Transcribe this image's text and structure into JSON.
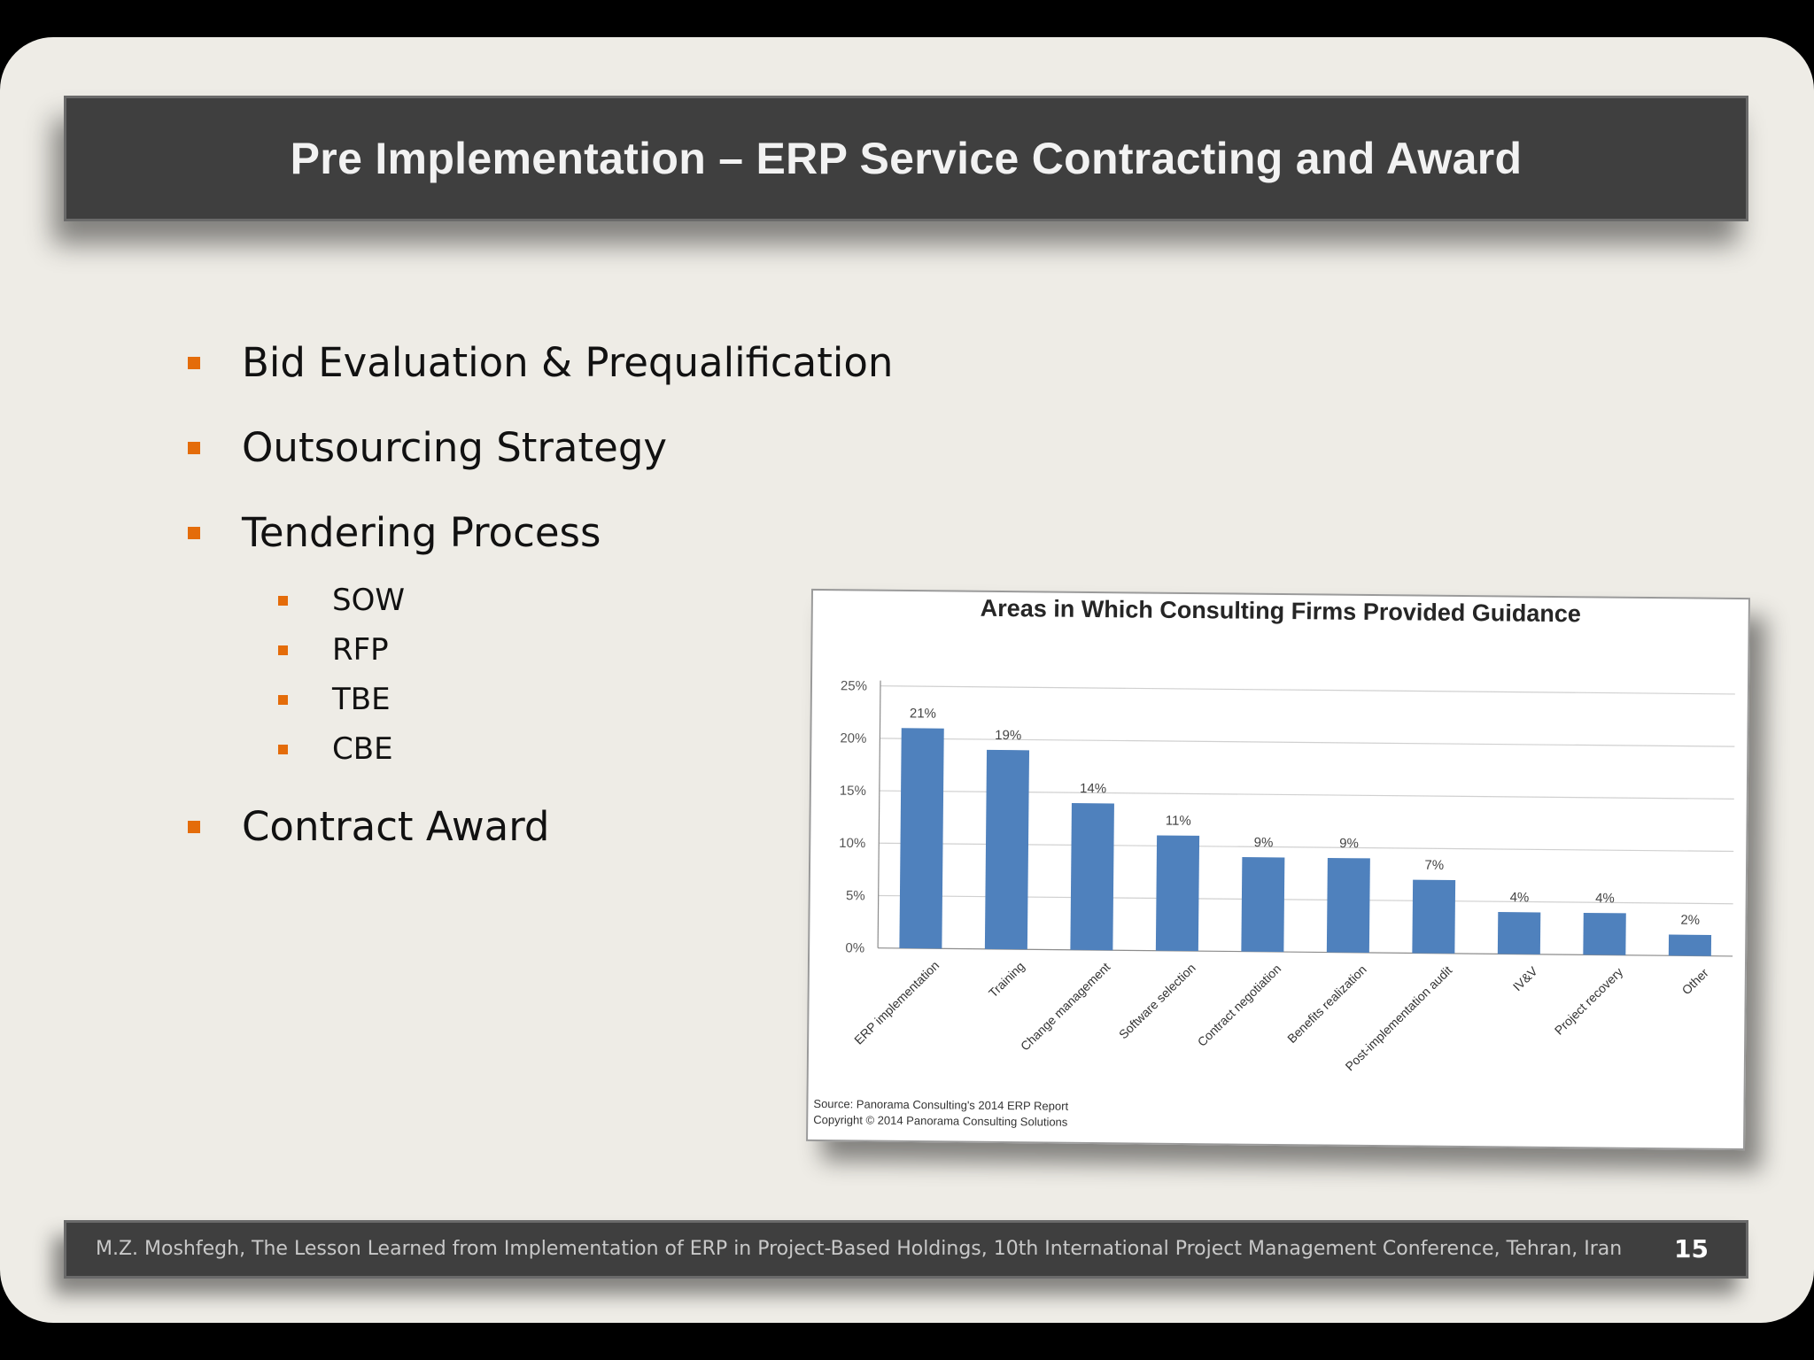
{
  "slide": {
    "title": "Pre Implementation – ERP Service Contracting and Award",
    "bullets": [
      {
        "level": 1,
        "text": "Bid Evaluation & Prequalification"
      },
      {
        "level": 1,
        "text": "Outsourcing Strategy"
      },
      {
        "level": 1,
        "text": "Tendering Process"
      },
      {
        "level": 2,
        "text": "SOW"
      },
      {
        "level": 2,
        "text": "RFP"
      },
      {
        "level": 2,
        "text": "TBE"
      },
      {
        "level": 2,
        "text": "CBE"
      },
      {
        "level": 1,
        "text": "Contract Award"
      }
    ],
    "footer": "M.Z. Moshfegh, The Lesson Learned from Implementation of ERP in Project-Based Holdings, 10th International Project Management Conference, Tehran, Iran",
    "page_number": "15"
  },
  "colors": {
    "accent": "#e46c0a",
    "bar": "#4f81bd",
    "title_bar": "#3f3f3f"
  },
  "chart_data": {
    "type": "bar",
    "title": "Areas in Which Consulting Firms Provided Guidance",
    "categories": [
      "ERP implementation",
      "Training",
      "Change management",
      "Software selection",
      "Contract negotiation",
      "Benefits realization",
      "Post-implementation audit",
      "IV&V",
      "Project recovery",
      "Other"
    ],
    "values": [
      21,
      19,
      14,
      11,
      9,
      9,
      7,
      4,
      4,
      2
    ],
    "data_labels": [
      "21%",
      "19%",
      "14%",
      "11%",
      "9%",
      "9%",
      "7%",
      "4%",
      "4%",
      "2%"
    ],
    "yticks": [
      0,
      5,
      10,
      15,
      20,
      25
    ],
    "ytick_labels": [
      "0%",
      "5%",
      "10%",
      "15%",
      "20%",
      "25%"
    ],
    "ylim": [
      0,
      25
    ],
    "grid": true,
    "xlabel": "",
    "ylabel": "",
    "source_lines": [
      "Source: Panorama Consulting's 2014 ERP Report",
      "Copyright © 2014 Panorama Consulting Solutions"
    ]
  }
}
